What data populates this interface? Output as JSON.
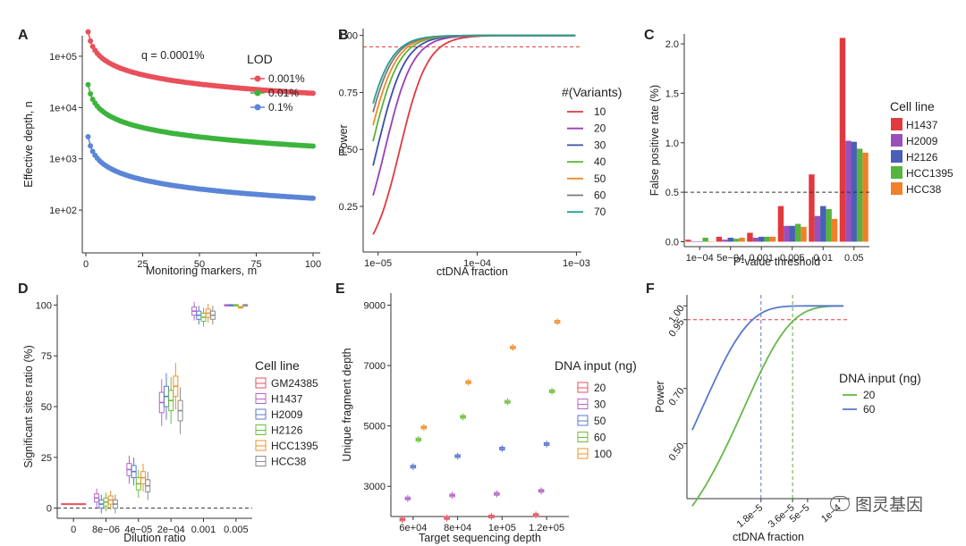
{
  "watermark": "图灵基因",
  "chart_data": [
    {
      "panel": "A",
      "type": "scatter",
      "xlabel": "Monitoring markers, m",
      "ylabel": "Effective depth, n",
      "xlim": [
        0,
        100
      ],
      "ylim_log10": [
        1.2,
        5.4
      ],
      "xticks": [
        0,
        25,
        50,
        75,
        100
      ],
      "xtick_labels": [
        "0",
        "25",
        "50",
        "75",
        "100"
      ],
      "yticks": [
        100,
        1000,
        10000,
        100000
      ],
      "ytick_labels": [
        "1e+02",
        "1e+03",
        "1e+04",
        "1e+05"
      ],
      "annotation": "q = 0.0001%",
      "legend_title": "LOD",
      "series": [
        {
          "name": "0.001%",
          "color": "#e8505b",
          "n_at_m1": 300000
        },
        {
          "name": "0.01%",
          "color": "#3cb43c",
          "n_at_m1": 28000
        },
        {
          "name": "0.1%",
          "color": "#5b85d6",
          "n_at_m1": 2700
        }
      ]
    },
    {
      "panel": "B",
      "type": "line",
      "xlabel": "ctDNA fraction",
      "ylabel": "Power",
      "xlim_log10": [
        -5.15,
        -2.95
      ],
      "ylim": [
        0.05,
        1.03
      ],
      "xticks_log10": [
        -5,
        -4,
        -3
      ],
      "xtick_labels": [
        "1e−05",
        "1e−04",
        "1e−03"
      ],
      "yticks": [
        0.25,
        0.5,
        0.75,
        1.0
      ],
      "ytick_labels": [
        "0.25",
        "0.50",
        "0.75",
        "1.00"
      ],
      "hline": 0.95,
      "legend_title": "#(Variants)",
      "series": [
        {
          "name": "10",
          "color": "#e0393e",
          "midpoint_log10": -4.78
        },
        {
          "name": "20",
          "color": "#9b3fb5",
          "midpoint_log10": -4.93
        },
        {
          "name": "30",
          "color": "#3e4ea8",
          "midpoint_log10": -5.01
        },
        {
          "name": "40",
          "color": "#5ab43c",
          "midpoint_log10": -5.07
        },
        {
          "name": "50",
          "color": "#f08a2a",
          "midpoint_log10": -5.11
        },
        {
          "name": "60",
          "color": "#7a7a7a",
          "midpoint_log10": -5.145
        },
        {
          "name": "70",
          "color": "#2f9c92",
          "midpoint_log10": -5.17
        }
      ]
    },
    {
      "panel": "C",
      "type": "bar",
      "xlabel": "P-value threshold",
      "ylabel": "False positive rate (%)",
      "categories": [
        "1e−04",
        "5e−04",
        "0.001",
        "0.005",
        "0.01",
        "0.05"
      ],
      "ylim": [
        -0.05,
        2.1
      ],
      "yticks": [
        0,
        0.5,
        1.0,
        1.5,
        2.0
      ],
      "ytick_labels": [
        "0.0",
        "0.5",
        "1.0",
        "1.5",
        "2.0"
      ],
      "hline": 0.5,
      "legend_title": "Cell line",
      "series": [
        {
          "name": "H1437",
          "color": "#e0393e",
          "values": [
            0.02,
            0.05,
            0.09,
            0.36,
            0.68,
            2.06
          ]
        },
        {
          "name": "H2009",
          "color": "#9b4fb8",
          "values": [
            0.0,
            0.02,
            0.04,
            0.16,
            0.26,
            1.02
          ]
        },
        {
          "name": "H2126",
          "color": "#4a5fb8",
          "values": [
            0.0,
            0.04,
            0.05,
            0.16,
            0.36,
            1.01
          ]
        },
        {
          "name": "HCC1395",
          "color": "#55b43c",
          "values": [
            0.04,
            0.03,
            0.05,
            0.18,
            0.33,
            0.94
          ]
        },
        {
          "name": "HCC38",
          "color": "#f0802a",
          "values": [
            0.0,
            0.04,
            0.05,
            0.15,
            0.23,
            0.9
          ]
        }
      ]
    },
    {
      "panel": "D",
      "type": "box",
      "xlabel": "Dilution ratio",
      "ylabel": "Significant sites ratio (%)",
      "categories": [
        "0",
        "8e−06",
        "4e−05",
        "2e−04",
        "0.001",
        "0.005"
      ],
      "ylim": [
        -5,
        105
      ],
      "yticks": [
        0,
        25,
        50,
        75,
        100
      ],
      "ytick_labels": [
        "0",
        "25",
        "50",
        "75",
        "100"
      ],
      "hline": 0,
      "legend_title": "Cell line",
      "series": [
        {
          "name": "GM24385",
          "color": "#e8505b",
          "medians": [
            2,
            null,
            null,
            null,
            null,
            null
          ]
        },
        {
          "name": "H1437",
          "color": "#b565c6",
          "medians": [
            null,
            5,
            19,
            52,
            97,
            100
          ]
        },
        {
          "name": "H2009",
          "color": "#5b78cc",
          "medians": [
            null,
            2,
            18,
            55,
            95,
            100
          ]
        },
        {
          "name": "H2126",
          "color": "#6cbf3c",
          "medians": [
            null,
            3,
            12,
            53,
            94,
            100
          ]
        },
        {
          "name": "HCC1395",
          "color": "#f0902a",
          "medians": [
            null,
            4,
            15,
            60,
            96,
            99
          ]
        },
        {
          "name": "HCC38",
          "color": "#8a8a8a",
          "medians": [
            null,
            2,
            11,
            48,
            95,
            100
          ]
        }
      ]
    },
    {
      "panel": "E",
      "type": "box",
      "xlabel": "Target sequencing depth",
      "ylabel": "Unique fragment depth",
      "categories": [
        "6e+04",
        "8e+04",
        "1e+05",
        "1.2e+05"
      ],
      "ylim": [
        2000,
        9400
      ],
      "yticks": [
        3000,
        5000,
        7000,
        9000
      ],
      "ytick_labels": [
        "3000",
        "5000",
        "7000",
        "9000"
      ],
      "legend_title": "DNA input (ng)",
      "series": [
        {
          "name": "20",
          "color": "#e8505b",
          "values": [
            1900,
            1950,
            2000,
            2050
          ]
        },
        {
          "name": "30",
          "color": "#b565c6",
          "values": [
            2600,
            2700,
            2750,
            2850
          ]
        },
        {
          "name": "50",
          "color": "#5b78cc",
          "values": [
            3650,
            4000,
            4250,
            4400
          ]
        },
        {
          "name": "60",
          "color": "#6cbf3c",
          "values": [
            4550,
            5300,
            5800,
            6150
          ]
        },
        {
          "name": "100",
          "color": "#f0902a",
          "values": [
            4950,
            6450,
            7600,
            8450
          ]
        }
      ]
    },
    {
      "panel": "F",
      "type": "line",
      "xlabel": "ctDNA fraction",
      "ylabel": "Power",
      "xlim_log10": [
        -5.45,
        -3.9
      ],
      "ylim": [
        0.3,
        1.04
      ],
      "xticks_log10": [
        -4.745,
        -4.444,
        -4.301,
        -4.0
      ],
      "xtick_labels": [
        "1.8e−5",
        "3.6e−5",
        "5e−5",
        "1e−4"
      ],
      "yticks": [
        0.5,
        0.7,
        0.95,
        1.0
      ],
      "ytick_labels": [
        "0.50",
        "0.70",
        "0.95",
        "1.00"
      ],
      "hline": 0.95,
      "vlines": [
        {
          "x_log10": -4.745,
          "color": "#5b78cc"
        },
        {
          "x_log10": -4.444,
          "color": "#55b43c"
        }
      ],
      "legend_title": "DNA input (ng)",
      "series": [
        {
          "name": "20",
          "color": "#66b84a",
          "k": 0.8
        },
        {
          "name": "60",
          "color": "#5b78cc",
          "k": 2.0
        }
      ]
    }
  ]
}
